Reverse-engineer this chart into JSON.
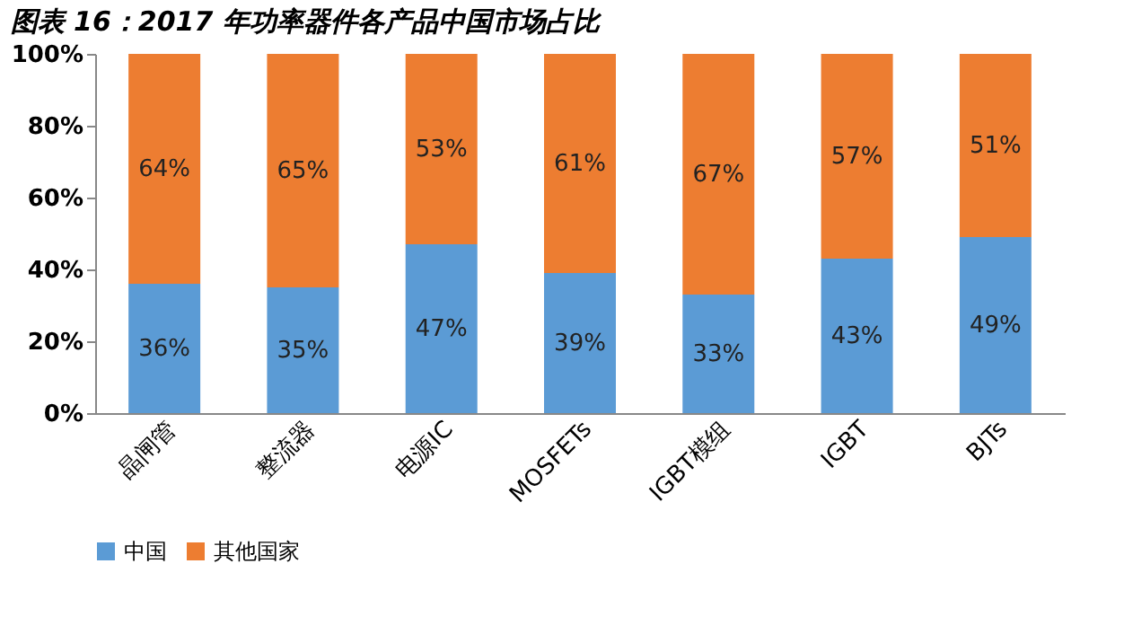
{
  "chart_data": {
    "type": "bar",
    "title": "图表 16：2017 年功率器件各产品中国市场占比",
    "stacked": true,
    "categories": [
      "晶闸管",
      "整流器",
      "电源IC",
      "MOSFETs",
      "IGBT模组",
      "IGBT",
      "BJTs"
    ],
    "series": [
      {
        "name": "中国",
        "color": "#5b9bd5",
        "values": [
          36,
          35,
          47,
          39,
          33,
          43,
          49
        ],
        "value_labels": [
          "36%",
          "35%",
          "47%",
          "39%",
          "33%",
          "43%",
          "49%"
        ]
      },
      {
        "name": "其他国家",
        "color": "#ed7d31",
        "values": [
          64,
          65,
          53,
          61,
          67,
          57,
          51
        ],
        "value_labels": [
          "64%",
          "65%",
          "53%",
          "61%",
          "67%",
          "57%",
          "51%"
        ]
      }
    ],
    "ylim": [
      0,
      100
    ],
    "yticks": [
      {
        "value": 0,
        "label": "0%"
      },
      {
        "value": 20,
        "label": "20%"
      },
      {
        "value": 40,
        "label": "40%"
      },
      {
        "value": 60,
        "label": "60%"
      },
      {
        "value": 80,
        "label": "80%"
      },
      {
        "value": 100,
        "label": "100%"
      }
    ],
    "grid": false,
    "legend": "bottom"
  }
}
